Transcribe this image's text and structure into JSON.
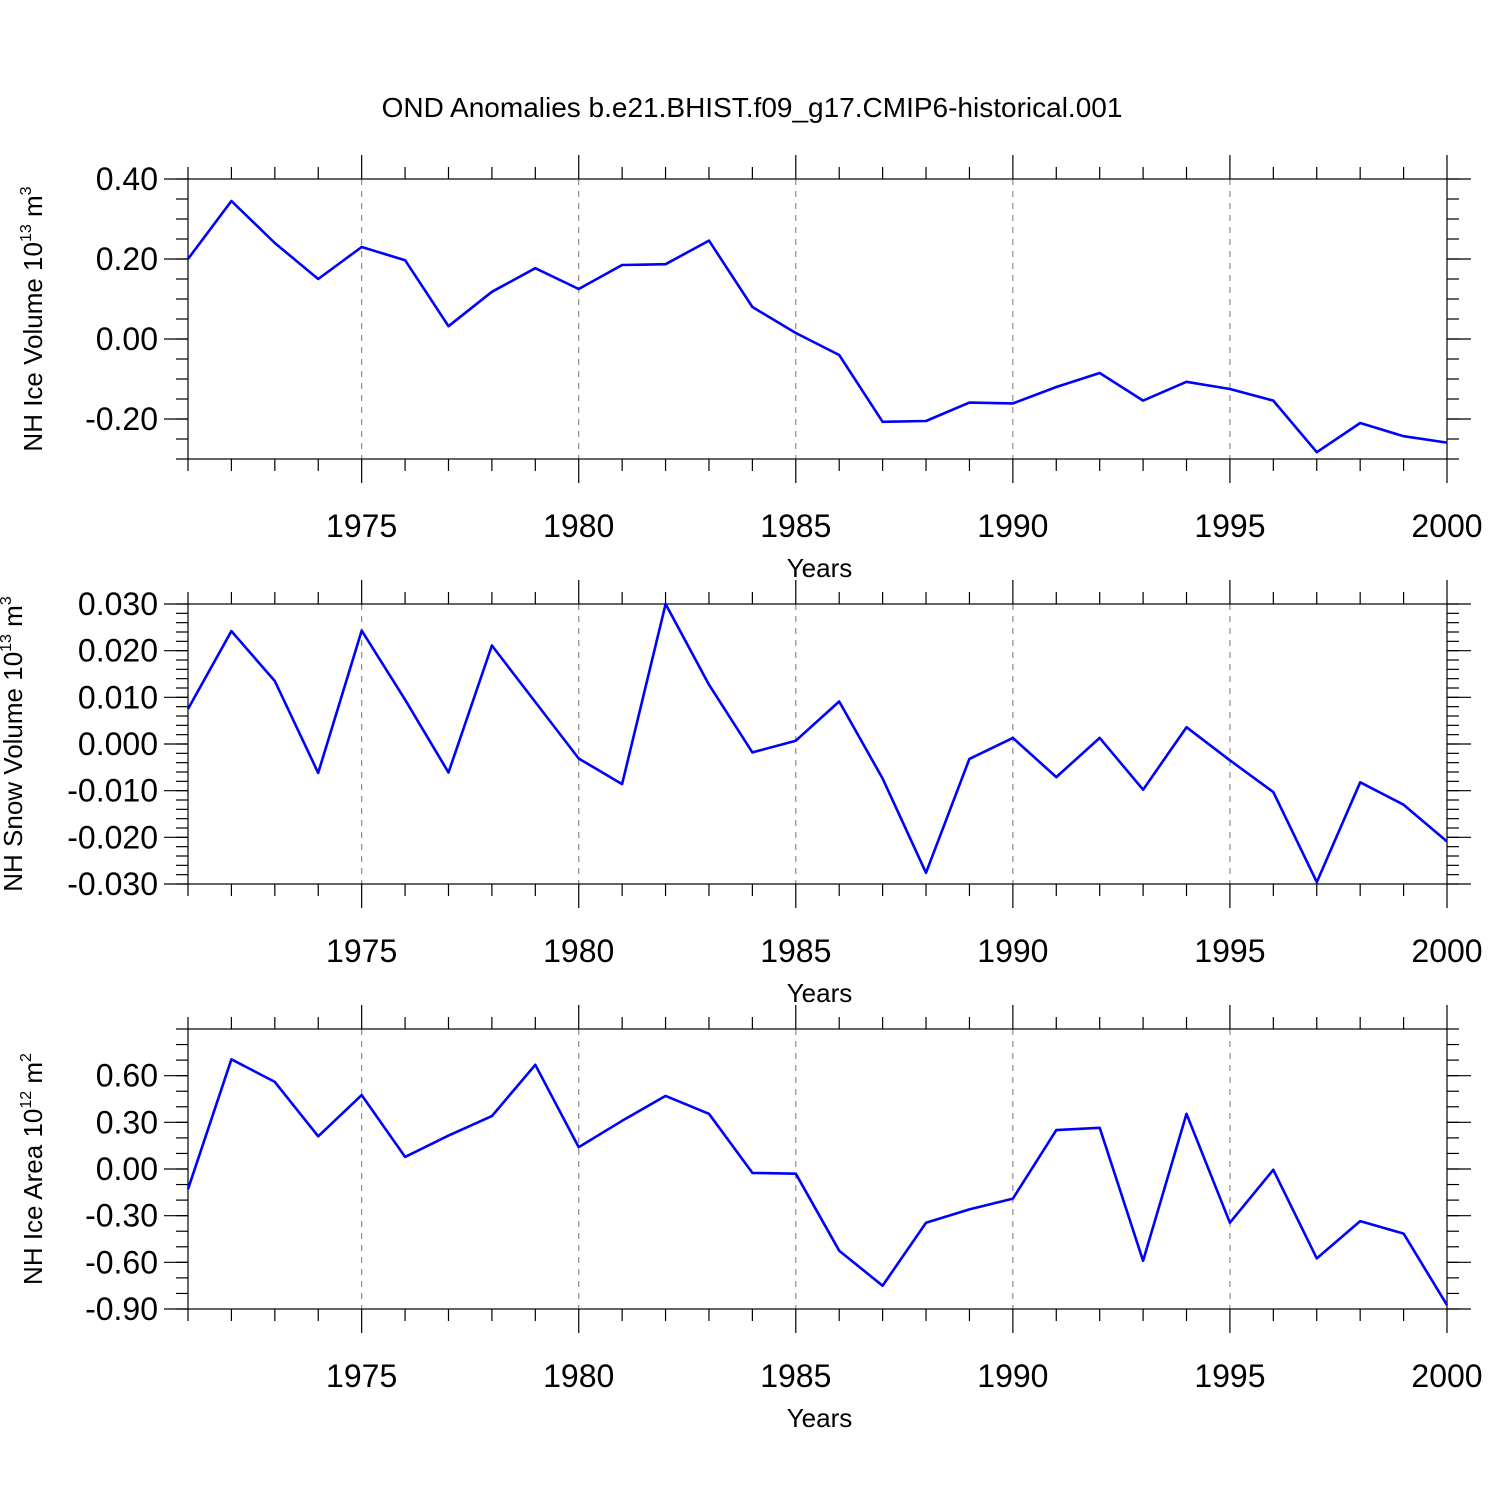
{
  "figure": {
    "title": "OND Anomalies b.e21.BHIST.f09_g17.CMIP6-historical.001"
  },
  "chart_data": [
    {
      "type": "line",
      "title": "",
      "xlabel": "Years",
      "ylabel": "NH Ice Volume 10",
      "ylabel_exponent": "13",
      "ylabel_unit": "m",
      "ylabel_unit_exponent": "3",
      "xlim": [
        1971,
        2000
      ],
      "ylim": [
        -0.3,
        0.4
      ],
      "yticks": [
        -0.2,
        0.0,
        0.2,
        0.4
      ],
      "ytick_labels": [
        "-0.20",
        "0.00",
        "0.20",
        "0.40"
      ],
      "yminor_step": 0.05,
      "xticks": [
        1975,
        1980,
        1985,
        1990,
        1995,
        2000
      ],
      "xtick_labels": [
        "1975",
        "1980",
        "1985",
        "1990",
        "1995",
        "2000"
      ],
      "grid": "vertical dashed at labeled years",
      "color": "#0000ff",
      "series": [
        {
          "x": [
            1971,
            1972,
            1973,
            1974,
            1975,
            1976,
            1977,
            1978,
            1979,
            1980,
            1981,
            1982,
            1983,
            1984,
            1985,
            1986,
            1987,
            1988,
            1989,
            1990,
            1991,
            1992,
            1993,
            1994,
            1995,
            1996,
            1997,
            1998,
            1999,
            2000
          ],
          "values": [
            0.2,
            0.345,
            0.24,
            0.15,
            0.23,
            0.197,
            0.032,
            0.118,
            0.177,
            0.125,
            0.185,
            0.187,
            0.246,
            0.08,
            0.015,
            -0.04,
            -0.207,
            -0.205,
            -0.159,
            -0.161,
            -0.12,
            -0.085,
            -0.154,
            -0.107,
            -0.125,
            -0.154,
            -0.283,
            -0.21,
            -0.243,
            -0.259
          ]
        }
      ]
    },
    {
      "type": "line",
      "title": "",
      "xlabel": "Years",
      "ylabel": "NH Snow Volume 10",
      "ylabel_exponent": "13",
      "ylabel_unit": "m",
      "ylabel_unit_exponent": "3",
      "xlim": [
        1971,
        2000
      ],
      "ylim": [
        -0.03,
        0.03
      ],
      "yticks": [
        -0.03,
        -0.02,
        -0.01,
        0.0,
        0.01,
        0.02,
        0.03
      ],
      "ytick_labels": [
        "-0.030",
        "-0.020",
        "-0.010",
        "0.000",
        "0.010",
        "0.020",
        "0.030"
      ],
      "yminor_step": 0.002,
      "xticks": [
        1975,
        1980,
        1985,
        1990,
        1995,
        2000
      ],
      "xtick_labels": [
        "1975",
        "1980",
        "1985",
        "1990",
        "1995",
        "2000"
      ],
      "grid": "vertical dashed at labeled years",
      "color": "#0000ff",
      "series": [
        {
          "x": [
            1971,
            1972,
            1973,
            1974,
            1975,
            1976,
            1977,
            1978,
            1979,
            1980,
            1981,
            1982,
            1983,
            1984,
            1985,
            1986,
            1987,
            1988,
            1989,
            1990,
            1991,
            1992,
            1993,
            1994,
            1995,
            1996,
            1997,
            1998,
            1999,
            2000
          ],
          "values": [
            0.0075,
            0.0242,
            0.0135,
            -0.0062,
            0.0243,
            0.0095,
            -0.0061,
            0.0211,
            0.009,
            -0.0031,
            -0.0086,
            0.03,
            0.0127,
            -0.0018,
            0.0007,
            0.0091,
            -0.0074,
            -0.0276,
            -0.0032,
            0.0013,
            -0.0071,
            0.0013,
            -0.0098,
            0.0036,
            -0.0035,
            -0.0103,
            -0.0296,
            -0.0082,
            -0.013,
            -0.0209
          ]
        }
      ]
    },
    {
      "type": "line",
      "title": "",
      "xlabel": "Years",
      "ylabel": "NH Ice Area 10",
      "ylabel_exponent": "12",
      "ylabel_unit": "m",
      "ylabel_unit_exponent": "2",
      "xlim": [
        1971,
        2000
      ],
      "ylim": [
        -0.9,
        0.9
      ],
      "yticks": [
        -0.9,
        -0.6,
        -0.3,
        0.0,
        0.3,
        0.6
      ],
      "ytick_labels": [
        "-0.90",
        "-0.60",
        "-0.30",
        "0.00",
        "0.30",
        "0.60"
      ],
      "yminor_step": 0.1,
      "xticks": [
        1975,
        1980,
        1985,
        1990,
        1995,
        2000
      ],
      "xtick_labels": [
        "1975",
        "1980",
        "1985",
        "1990",
        "1995",
        "2000"
      ],
      "grid": "vertical dashed at labeled years",
      "color": "#0000ff",
      "series": [
        {
          "x": [
            1971,
            1972,
            1973,
            1974,
            1975,
            1976,
            1977,
            1978,
            1979,
            1980,
            1981,
            1982,
            1983,
            1984,
            1985,
            1986,
            1987,
            1988,
            1989,
            1990,
            1991,
            1992,
            1993,
            1994,
            1995,
            1996,
            1997,
            1998,
            1999,
            2000
          ],
          "values": [
            -0.13,
            0.705,
            0.56,
            0.21,
            0.475,
            0.078,
            0.215,
            0.34,
            0.67,
            0.14,
            0.31,
            0.47,
            0.355,
            -0.025,
            -0.03,
            -0.525,
            -0.75,
            -0.345,
            -0.26,
            -0.19,
            0.25,
            0.265,
            -0.59,
            0.355,
            -0.345,
            -0.005,
            -0.575,
            -0.335,
            -0.415,
            -0.875
          ]
        }
      ]
    }
  ]
}
